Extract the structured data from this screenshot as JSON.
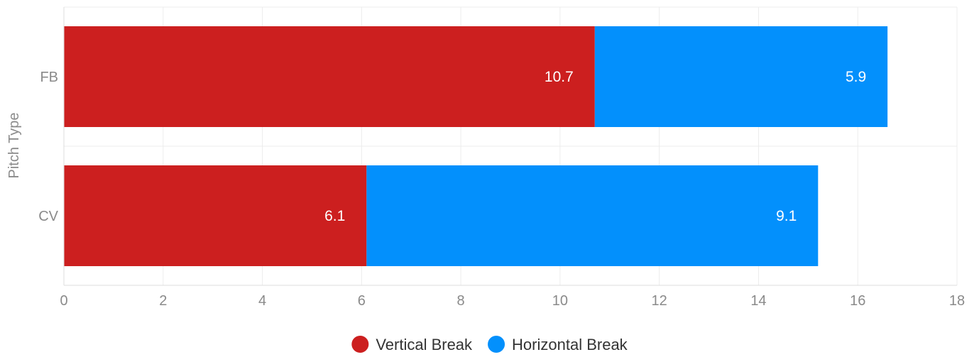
{
  "chart_data": {
    "type": "bar",
    "orientation": "horizontal",
    "stacked": true,
    "title": "",
    "xlabel": "",
    "ylabel": "Pitch Type",
    "categories": [
      "FB",
      "CV"
    ],
    "series": [
      {
        "name": "Vertical Break",
        "values": [
          10.7,
          6.1
        ],
        "color": "#cc1f1f"
      },
      {
        "name": "Horizontal Break",
        "values": [
          5.9,
          9.1
        ],
        "color": "#0390fc"
      }
    ],
    "xlim": [
      0,
      18
    ],
    "xticks": [
      0,
      2,
      4,
      6,
      8,
      10,
      12,
      14,
      16,
      18
    ],
    "grid": true,
    "legend": "bottom-center",
    "data_labels": true
  }
}
